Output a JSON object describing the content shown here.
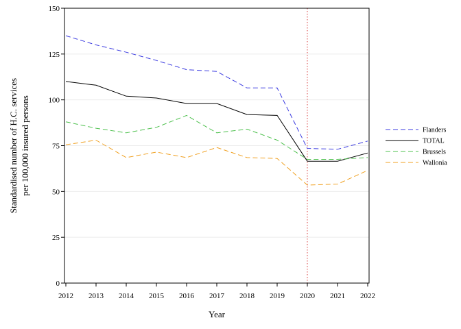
{
  "chart_data": {
    "type": "line",
    "xlabel": "Year",
    "ylabel_lines": [
      "Standardised number of H.C. services",
      "per 100,000 insured persons"
    ],
    "x": [
      2012,
      2013,
      2014,
      2015,
      2016,
      2017,
      2018,
      2019,
      2020,
      2021,
      2022
    ],
    "xlim": [
      2012,
      2022
    ],
    "ylim": [
      0,
      150
    ],
    "yticks": [
      0,
      25,
      50,
      75,
      100,
      125,
      150
    ],
    "grid": "horizontal, faint",
    "legend_position": "right",
    "reference_line": {
      "x": 2020,
      "style": "dotted",
      "color": "#e06060"
    },
    "series": [
      {
        "name": "Flanders",
        "color": "#3a3ae0",
        "dash": "dashed",
        "values": [
          135,
          130,
          126,
          121.5,
          116.5,
          115.5,
          106.5,
          106.5,
          73.5,
          73,
          77.5
        ]
      },
      {
        "name": "TOTAL",
        "color": "#000000",
        "dash": "solid",
        "values": [
          110,
          108,
          102,
          101,
          98,
          98,
          92,
          91.5,
          66.5,
          66.5,
          71
        ]
      },
      {
        "name": "Brussels",
        "color": "#4cc04c",
        "dash": "dashed",
        "values": [
          88,
          84.5,
          82,
          85,
          91.5,
          82,
          84,
          78,
          67.5,
          67.5,
          68.5
        ]
      },
      {
        "name": "Wallonia",
        "color": "#f0a020",
        "dash": "dashed",
        "values": [
          75.5,
          78,
          68.5,
          71.5,
          68.5,
          74,
          68.5,
          68,
          53.5,
          54,
          61.5
        ]
      }
    ]
  }
}
